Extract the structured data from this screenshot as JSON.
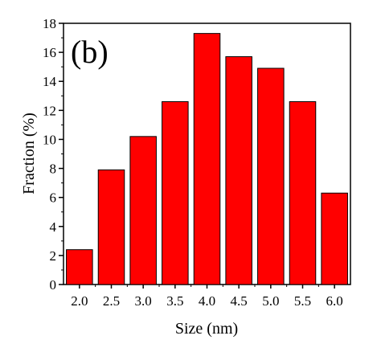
{
  "chart_data": {
    "type": "bar",
    "panel_label": "(b)",
    "xlabel": "Size (nm)",
    "ylabel": "Fraction (%)",
    "categories": [
      "2.0",
      "2.5",
      "3.0",
      "3.5",
      "4.0",
      "4.5",
      "5.0",
      "5.5",
      "6.0"
    ],
    "values": [
      2.4,
      7.9,
      10.2,
      12.6,
      17.3,
      15.7,
      14.9,
      12.6,
      6.3
    ],
    "ylim": [
      0,
      18
    ],
    "yticks": [
      "0",
      "2",
      "4",
      "6",
      "8",
      "10",
      "12",
      "14",
      "16",
      "18"
    ],
    "grid": false,
    "bar_color": "#ff0000",
    "bar_edge_color": "#000000"
  }
}
